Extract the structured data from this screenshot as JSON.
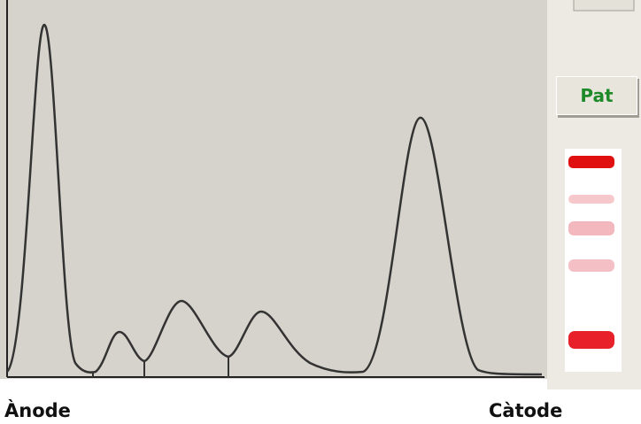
{
  "button": {
    "label": "Pat"
  },
  "labels": {
    "left": "Ànode",
    "right": "Càtode"
  }
}
